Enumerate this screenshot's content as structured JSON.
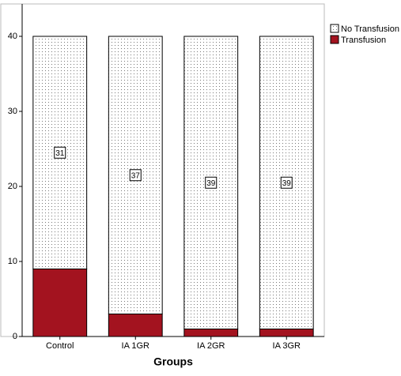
{
  "chart_data": {
    "type": "stacked_bar",
    "categories": [
      "Control",
      "IA 1GR",
      "IA 2GR",
      "IA 3GR"
    ],
    "series": [
      {
        "name": "Transfusion",
        "color": "#a3131f",
        "values": [
          9,
          3,
          1,
          1
        ]
      },
      {
        "name": "No Transfusion",
        "color": "#ffffff",
        "pattern": "dots",
        "values": [
          31,
          37,
          39,
          39
        ],
        "show_value_labels": true
      }
    ],
    "xlabel": "Groups",
    "ylim": [
      0,
      44
    ],
    "yticks": [
      0,
      10,
      20,
      30,
      40
    ],
    "grid": false,
    "legend": "right"
  }
}
